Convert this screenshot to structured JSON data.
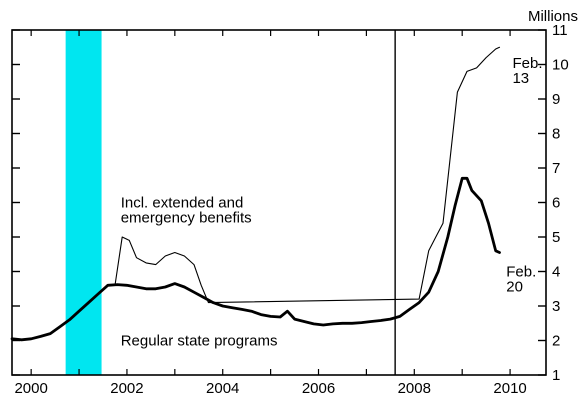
{
  "chart_data": {
    "type": "line",
    "ylabel": "Millions",
    "ylim": [
      1,
      11
    ],
    "xlim": [
      1999.6,
      2010.75
    ],
    "y_ticks": [
      "1",
      "2",
      "3",
      "4",
      "5",
      "6",
      "7",
      "8",
      "9",
      "10",
      "11"
    ],
    "x_ticks": [
      {
        "label": "2000",
        "x": 2000.0
      },
      {
        "label": "2002",
        "x": 2002.0
      },
      {
        "label": "2004",
        "x": 2004.0
      },
      {
        "label": "2006",
        "x": 2006.0
      },
      {
        "label": "2008",
        "x": 2008.0
      },
      {
        "label": "2010",
        "x": 2010.0
      }
    ],
    "recession_shading": {
      "x0": 2000.72,
      "x1": 2001.47,
      "color": "#00e6f0"
    },
    "vertical_line_x": 2007.6,
    "series": [
      {
        "name": "Regular state programs",
        "stroke": "thick",
        "points": [
          [
            1999.6,
            2.05
          ],
          [
            1999.8,
            2.02
          ],
          [
            2000.0,
            2.05
          ],
          [
            2000.2,
            2.12
          ],
          [
            2000.4,
            2.2
          ],
          [
            2000.6,
            2.4
          ],
          [
            2000.8,
            2.6
          ],
          [
            2001.0,
            2.85
          ],
          [
            2001.2,
            3.1
          ],
          [
            2001.4,
            3.35
          ],
          [
            2001.6,
            3.6
          ],
          [
            2001.8,
            3.62
          ],
          [
            2002.0,
            3.6
          ],
          [
            2002.2,
            3.55
          ],
          [
            2002.4,
            3.5
          ],
          [
            2002.6,
            3.5
          ],
          [
            2002.8,
            3.55
          ],
          [
            2003.0,
            3.65
          ],
          [
            2003.2,
            3.55
          ],
          [
            2003.4,
            3.4
          ],
          [
            2003.6,
            3.25
          ],
          [
            2003.8,
            3.1
          ],
          [
            2004.0,
            3.0
          ],
          [
            2004.2,
            2.95
          ],
          [
            2004.4,
            2.9
          ],
          [
            2004.6,
            2.85
          ],
          [
            2004.8,
            2.75
          ],
          [
            2005.0,
            2.7
          ],
          [
            2005.2,
            2.68
          ],
          [
            2005.35,
            2.85
          ],
          [
            2005.5,
            2.62
          ],
          [
            2005.7,
            2.55
          ],
          [
            2005.9,
            2.48
          ],
          [
            2006.1,
            2.45
          ],
          [
            2006.3,
            2.48
          ],
          [
            2006.5,
            2.5
          ],
          [
            2006.7,
            2.5
          ],
          [
            2006.9,
            2.52
          ],
          [
            2007.1,
            2.55
          ],
          [
            2007.3,
            2.58
          ],
          [
            2007.5,
            2.62
          ],
          [
            2007.7,
            2.7
          ],
          [
            2007.9,
            2.9
          ],
          [
            2008.1,
            3.1
          ],
          [
            2008.3,
            3.4
          ],
          [
            2008.5,
            4.0
          ],
          [
            2008.7,
            5.0
          ],
          [
            2008.85,
            5.9
          ],
          [
            2009.0,
            6.7
          ],
          [
            2009.1,
            6.7
          ],
          [
            2009.2,
            6.35
          ],
          [
            2009.4,
            6.05
          ],
          [
            2009.55,
            5.4
          ],
          [
            2009.7,
            4.6
          ],
          [
            2009.78,
            4.55
          ]
        ]
      },
      {
        "name": "Incl. extended and emergency benefits",
        "stroke": "thin",
        "points": [
          [
            2001.75,
            3.6
          ],
          [
            2001.9,
            5.0
          ],
          [
            2002.05,
            4.9
          ],
          [
            2002.2,
            4.4
          ],
          [
            2002.4,
            4.25
          ],
          [
            2002.6,
            4.2
          ],
          [
            2002.8,
            4.45
          ],
          [
            2003.0,
            4.55
          ],
          [
            2003.2,
            4.45
          ],
          [
            2003.4,
            4.2
          ],
          [
            2003.55,
            3.6
          ],
          [
            2003.7,
            3.1
          ],
          [
            2008.1,
            3.2
          ],
          [
            2008.3,
            4.6
          ],
          [
            2008.45,
            5.0
          ],
          [
            2008.6,
            5.4
          ],
          [
            2008.75,
            7.3
          ],
          [
            2008.9,
            9.2
          ],
          [
            2009.1,
            9.8
          ],
          [
            2009.3,
            9.9
          ],
          [
            2009.5,
            10.2
          ],
          [
            2009.7,
            10.45
          ],
          [
            2009.78,
            10.5
          ]
        ]
      }
    ],
    "annotations": [
      {
        "lines": [
          "Incl. extended and",
          "emergency benefits"
        ],
        "x": 2001.87,
        "y": 5.85
      },
      {
        "lines": [
          "Regular state programs"
        ],
        "x": 2001.87,
        "y": 1.85
      },
      {
        "lines": [
          "Feb.",
          "13"
        ],
        "x": 2010.05,
        "y": 9.9
      },
      {
        "lines": [
          "Feb.",
          "20"
        ],
        "x": 2009.92,
        "y": 3.85
      }
    ]
  }
}
